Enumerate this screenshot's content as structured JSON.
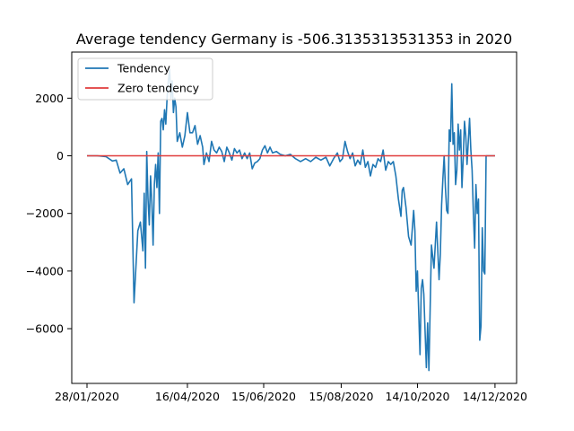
{
  "chart_data": {
    "type": "line",
    "title": "Average tendency Germany is -506.3135313531353 in 2020",
    "xlabel": "",
    "ylabel": "",
    "grid": false,
    "legend_placement": "top-left",
    "x_tick_labels": [
      "28/01/2020",
      "16/04/2020",
      "15/06/2020",
      "15/08/2020",
      "14/10/2020",
      "14/12/2020"
    ],
    "x_ticks": [
      "2020-01-28",
      "2020-04-16",
      "2020-06-15",
      "2020-08-15",
      "2020-10-14",
      "2020-12-14"
    ],
    "xlim": [
      "2020-01-16",
      "2020-12-31"
    ],
    "y_ticks": [
      -6000,
      -4000,
      -2000,
      0,
      2000
    ],
    "y_tick_labels": [
      "−6000",
      "−4000",
      "−2000",
      "0",
      "2000"
    ],
    "ylim": [
      -7900,
      3600
    ],
    "series": [
      {
        "name": "Tendency",
        "color": "#1f77b4",
        "points": [
          [
            "2020-01-28",
            0
          ],
          [
            "2020-02-05",
            0
          ],
          [
            "2020-02-12",
            -30
          ],
          [
            "2020-02-17",
            -180
          ],
          [
            "2020-02-20",
            -150
          ],
          [
            "2020-02-23",
            -600
          ],
          [
            "2020-02-26",
            -450
          ],
          [
            "2020-02-29",
            -1000
          ],
          [
            "2020-03-03",
            -800
          ],
          [
            "2020-03-05",
            -5100
          ],
          [
            "2020-03-08",
            -2600
          ],
          [
            "2020-03-10",
            -2300
          ],
          [
            "2020-03-12",
            -3300
          ],
          [
            "2020-03-13",
            -1300
          ],
          [
            "2020-03-14",
            -3900
          ],
          [
            "2020-03-15",
            150
          ],
          [
            "2020-03-16",
            -1500
          ],
          [
            "2020-03-17",
            -2400
          ],
          [
            "2020-03-18",
            -700
          ],
          [
            "2020-03-19",
            -1600
          ],
          [
            "2020-03-20",
            -3100
          ],
          [
            "2020-03-21",
            -1000
          ],
          [
            "2020-03-22",
            -300
          ],
          [
            "2020-03-23",
            -1100
          ],
          [
            "2020-03-24",
            100
          ],
          [
            "2020-03-25",
            -2000
          ],
          [
            "2020-03-26",
            1200
          ],
          [
            "2020-03-27",
            1300
          ],
          [
            "2020-03-28",
            900
          ],
          [
            "2020-03-29",
            1600
          ],
          [
            "2020-03-30",
            1100
          ],
          [
            "2020-03-31",
            2000
          ],
          [
            "2020-04-01",
            2600
          ],
          [
            "2020-04-02",
            3000
          ],
          [
            "2020-04-03",
            2000
          ],
          [
            "2020-04-04",
            2600
          ],
          [
            "2020-04-05",
            1500
          ],
          [
            "2020-04-06",
            2000
          ],
          [
            "2020-04-07",
            1700
          ],
          [
            "2020-04-08",
            500
          ],
          [
            "2020-04-10",
            800
          ],
          [
            "2020-04-12",
            300
          ],
          [
            "2020-04-14",
            700
          ],
          [
            "2020-04-16",
            1500
          ],
          [
            "2020-04-18",
            800
          ],
          [
            "2020-04-20",
            800
          ],
          [
            "2020-04-22",
            1050
          ],
          [
            "2020-04-24",
            400
          ],
          [
            "2020-04-26",
            700
          ],
          [
            "2020-04-28",
            300
          ],
          [
            "2020-04-29",
            -300
          ],
          [
            "2020-05-01",
            100
          ],
          [
            "2020-05-03",
            -200
          ],
          [
            "2020-05-05",
            500
          ],
          [
            "2020-05-07",
            200
          ],
          [
            "2020-05-09",
            100
          ],
          [
            "2020-05-11",
            300
          ],
          [
            "2020-05-13",
            150
          ],
          [
            "2020-05-15",
            -200
          ],
          [
            "2020-05-17",
            300
          ],
          [
            "2020-05-19",
            100
          ],
          [
            "2020-05-21",
            -150
          ],
          [
            "2020-05-23",
            250
          ],
          [
            "2020-05-25",
            100
          ],
          [
            "2020-05-27",
            200
          ],
          [
            "2020-05-29",
            -100
          ],
          [
            "2020-05-31",
            100
          ],
          [
            "2020-06-02",
            -100
          ],
          [
            "2020-06-04",
            100
          ],
          [
            "2020-06-06",
            -450
          ],
          [
            "2020-06-08",
            -250
          ],
          [
            "2020-06-10",
            -200
          ],
          [
            "2020-06-12",
            -100
          ],
          [
            "2020-06-14",
            200
          ],
          [
            "2020-06-16",
            350
          ],
          [
            "2020-06-18",
            100
          ],
          [
            "2020-06-20",
            300
          ],
          [
            "2020-06-22",
            100
          ],
          [
            "2020-06-25",
            150
          ],
          [
            "2020-06-28",
            50
          ],
          [
            "2020-07-02",
            0
          ],
          [
            "2020-07-06",
            50
          ],
          [
            "2020-07-10",
            -100
          ],
          [
            "2020-07-14",
            -200
          ],
          [
            "2020-07-18",
            -100
          ],
          [
            "2020-07-22",
            -200
          ],
          [
            "2020-07-26",
            -50
          ],
          [
            "2020-07-30",
            -150
          ],
          [
            "2020-08-03",
            -50
          ],
          [
            "2020-08-06",
            -350
          ],
          [
            "2020-08-09",
            -100
          ],
          [
            "2020-08-12",
            100
          ],
          [
            "2020-08-14",
            -200
          ],
          [
            "2020-08-16",
            -100
          ],
          [
            "2020-08-18",
            500
          ],
          [
            "2020-08-20",
            150
          ],
          [
            "2020-08-22",
            -100
          ],
          [
            "2020-08-24",
            100
          ],
          [
            "2020-08-26",
            -350
          ],
          [
            "2020-08-28",
            -150
          ],
          [
            "2020-08-30",
            -300
          ],
          [
            "2020-09-01",
            200
          ],
          [
            "2020-09-03",
            -400
          ],
          [
            "2020-09-05",
            -200
          ],
          [
            "2020-09-07",
            -700
          ],
          [
            "2020-09-09",
            -300
          ],
          [
            "2020-09-11",
            -400
          ],
          [
            "2020-09-13",
            -100
          ],
          [
            "2020-09-15",
            -200
          ],
          [
            "2020-09-17",
            200
          ],
          [
            "2020-09-19",
            -500
          ],
          [
            "2020-09-21",
            -200
          ],
          [
            "2020-09-23",
            -300
          ],
          [
            "2020-09-25",
            -200
          ],
          [
            "2020-09-27",
            -700
          ],
          [
            "2020-09-29",
            -1500
          ],
          [
            "2020-10-01",
            -2100
          ],
          [
            "2020-10-02",
            -1200
          ],
          [
            "2020-10-03",
            -1100
          ],
          [
            "2020-10-05",
            -1800
          ],
          [
            "2020-10-07",
            -2800
          ],
          [
            "2020-10-09",
            -3100
          ],
          [
            "2020-10-11",
            -1900
          ],
          [
            "2020-10-12",
            -2600
          ],
          [
            "2020-10-13",
            -4700
          ],
          [
            "2020-10-14",
            -4000
          ],
          [
            "2020-10-16",
            -6900
          ],
          [
            "2020-10-17",
            -4600
          ],
          [
            "2020-10-18",
            -4300
          ],
          [
            "2020-10-19",
            -4800
          ],
          [
            "2020-10-20",
            -6100
          ],
          [
            "2020-10-21",
            -7350
          ],
          [
            "2020-10-22",
            -5800
          ],
          [
            "2020-10-23",
            -7450
          ],
          [
            "2020-10-25",
            -3100
          ],
          [
            "2020-10-26",
            -3500
          ],
          [
            "2020-10-27",
            -3900
          ],
          [
            "2020-10-29",
            -2300
          ],
          [
            "2020-10-30",
            -3300
          ],
          [
            "2020-10-31",
            -4300
          ],
          [
            "2020-11-01",
            -3400
          ],
          [
            "2020-11-02",
            -1700
          ],
          [
            "2020-11-03",
            -800
          ],
          [
            "2020-11-04",
            0
          ],
          [
            "2020-11-05",
            -1100
          ],
          [
            "2020-11-06",
            -1900
          ],
          [
            "2020-11-07",
            -2000
          ],
          [
            "2020-11-08",
            900
          ],
          [
            "2020-11-09",
            500
          ],
          [
            "2020-11-10",
            2500
          ],
          [
            "2020-11-11",
            400
          ],
          [
            "2020-11-12",
            800
          ],
          [
            "2020-11-13",
            -1000
          ],
          [
            "2020-11-14",
            -500
          ],
          [
            "2020-11-15",
            1100
          ],
          [
            "2020-11-16",
            200
          ],
          [
            "2020-11-17",
            900
          ],
          [
            "2020-11-18",
            -1100
          ],
          [
            "2020-11-19",
            -100
          ],
          [
            "2020-11-20",
            1200
          ],
          [
            "2020-11-21",
            700
          ],
          [
            "2020-11-22",
            -300
          ],
          [
            "2020-11-23",
            500
          ],
          [
            "2020-11-24",
            1300
          ],
          [
            "2020-11-25",
            200
          ],
          [
            "2020-11-26",
            -500
          ],
          [
            "2020-11-27",
            -2000
          ],
          [
            "2020-11-28",
            -3200
          ],
          [
            "2020-11-29",
            -1000
          ],
          [
            "2020-11-30",
            -2000
          ],
          [
            "2020-12-01",
            -1500
          ],
          [
            "2020-12-02",
            -6400
          ],
          [
            "2020-12-03",
            -5900
          ],
          [
            "2020-12-04",
            -2500
          ],
          [
            "2020-12-05",
            -4000
          ],
          [
            "2020-12-06",
            -4100
          ],
          [
            "2020-12-07",
            0
          ],
          [
            "2020-12-10",
            0
          ],
          [
            "2020-12-14",
            0
          ]
        ]
      },
      {
        "name": "Zero tendency",
        "color": "#e03c3c",
        "points": [
          [
            "2020-01-28",
            0
          ],
          [
            "2020-12-14",
            0
          ]
        ]
      }
    ]
  }
}
